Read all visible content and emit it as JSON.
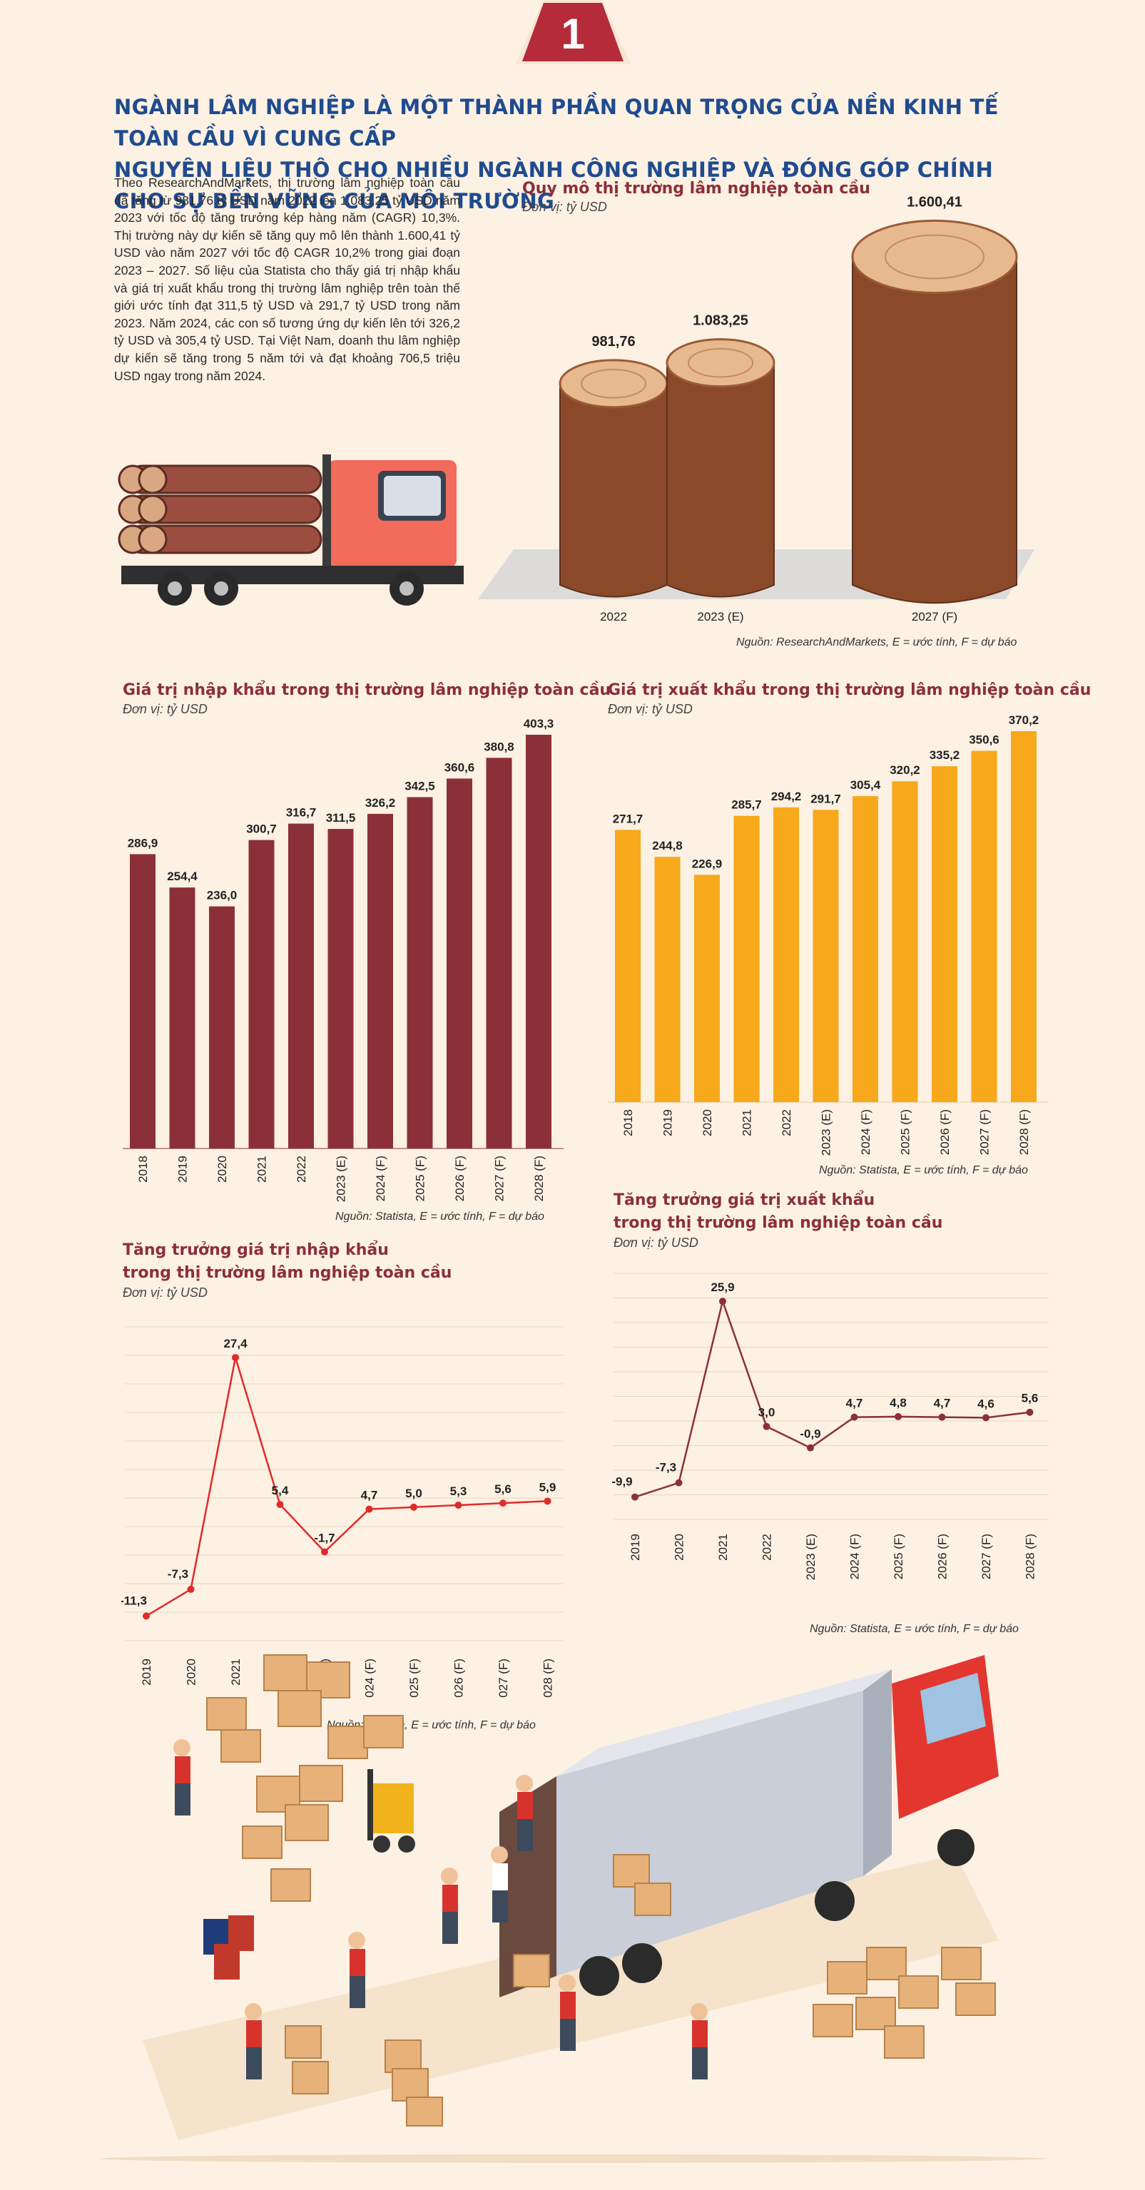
{
  "badge": {
    "number": "1"
  },
  "headline": {
    "line1": "NGÀNH LÂM NGHIỆP LÀ MỘT THÀNH PHẦN QUAN TRỌNG CỦA NỀN KINH TẾ TOÀN CẦU VÌ CUNG CẤP",
    "line2": "NGUYÊN LIỆU THÔ CHO NHIỀU NGÀNH CÔNG NGHIỆP VÀ ĐÓNG GÓP CHÍNH CHO SỰ BỀN VỮNG CỦA MÔI TRƯỜNG"
  },
  "intro": {
    "text": "Theo ResearchAndMarkets, thị trường lâm nghiệp toàn cầu đã tăng từ 981,76 tỷ USD năm 2022 lên 1.083,25 tỷ USD năm 2023 với tốc độ tăng trưởng kép hàng năm (CAGR) 10,3%. Thị trường này dự kiến sẽ tăng quy mô lên thành 1.600,41 tỷ USD vào năm 2027 với tốc độ CAGR 10,2% trong giai đoạn 2023 – 2027. Số liệu của Statista cho thấy giá trị nhập khẩu và giá trị xuất khẩu trong thị trường lâm nghiệp trên toàn thế giới ước tính đạt 311,5 tỷ USD và 291,7 tỷ USD trong năm 2023. Năm 2024, các con số tương ứng dự kiến lên tới 326,2 tỷ USD và 305,4 tỷ USD. Tại Việt Nam, doanh thu lâm nghiệp dự kiến sẽ tăng trong 5 năm tới và đạt khoảng 706,5 triệu USD ngay trong năm 2024."
  },
  "colors": {
    "maroon": "#8b3039",
    "orange": "#f7a81b",
    "red_line": "#e02b2b",
    "dark_line": "#8b3039",
    "headline_blue": "#1f4b8f",
    "wood": "#8a4a2a"
  },
  "charts": {
    "market": {
      "title": "Quy mô thị trường lâm nghiệp toàn cầu",
      "unit": "Đơn vị: tỷ USD",
      "source": "Nguồn: ResearchAndMarkets, E = ước tính, F = dự báo"
    },
    "imports": {
      "title": "Giá trị nhập khẩu trong thị trường lâm nghiệp toàn cầu",
      "unit": "Đơn vị: tỷ USD",
      "source": "Nguồn: Statista, E = ước tính, F = dự báo"
    },
    "exports": {
      "title": "Giá trị xuất khẩu trong thị trường lâm nghiệp toàn cầu",
      "unit": "Đơn vị: tỷ USD",
      "source": "Nguồn: Statista, E = ước tính, F = dự báo"
    },
    "import_growth": {
      "title_line1": "Tăng trưởng giá trị nhập khẩu",
      "title_line2": "trong thị trường lâm nghiệp toàn cầu",
      "unit": "Đơn vị: tỷ USD",
      "source": "Nguồn: Statista, E = ước tính, F = dự báo"
    },
    "export_growth": {
      "title_line1": "Tăng trưởng giá trị xuất khẩu",
      "title_line2": "trong thị trường lâm nghiệp toàn cầu",
      "unit": "Đơn vị: tỷ USD",
      "source": "Nguồn: Statista, E = ước tính, F = dự báo"
    }
  },
  "chart_data": [
    {
      "id": "market",
      "type": "bar",
      "title": "Quy mô thị trường lâm nghiệp toàn cầu",
      "categories": [
        "2022",
        "2023 (E)",
        "2027 (F)"
      ],
      "values": [
        981.76,
        1083.25,
        1600.41
      ],
      "value_labels": [
        "981,76",
        "1.083,25",
        "1.600,41"
      ]
    },
    {
      "id": "imports",
      "type": "bar",
      "title": "Giá trị nhập khẩu trong thị trường lâm nghiệp toàn cầu",
      "categories": [
        "2018",
        "2019",
        "2020",
        "2021",
        "2022",
        "2023 (E)",
        "2024 (F)",
        "2025 (F)",
        "2026 (F)",
        "2027 (F)",
        "2028 (F)"
      ],
      "values": [
        286.9,
        254.4,
        236.0,
        300.7,
        316.7,
        311.5,
        326.2,
        342.5,
        360.6,
        380.8,
        403.3
      ],
      "value_labels": [
        "286,9",
        "254,4",
        "236,0",
        "300,7",
        "316,7",
        "311,5",
        "326,2",
        "342,5",
        "360,6",
        "380,8",
        "403,3"
      ],
      "ylim": [
        0,
        403.3
      ]
    },
    {
      "id": "exports",
      "type": "bar",
      "title": "Giá trị xuất khẩu trong thị trường lâm nghiệp toàn cầu",
      "categories": [
        "2018",
        "2019",
        "2020",
        "2021",
        "2022",
        "2023 (E)",
        "2024 (F)",
        "2025 (F)",
        "2026 (F)",
        "2027 (F)",
        "2028 (F)"
      ],
      "values": [
        271.7,
        244.8,
        226.9,
        285.7,
        294.2,
        291.7,
        305.4,
        320.2,
        335.2,
        350.6,
        370.2
      ],
      "value_labels": [
        "271,7",
        "244,8",
        "226,9",
        "285,7",
        "294,2",
        "291,7",
        "305,4",
        "320,2",
        "335,2",
        "350,6",
        "370,2"
      ],
      "ylim": [
        0,
        370.2
      ]
    },
    {
      "id": "import_growth",
      "type": "line",
      "title": "Tăng trưởng giá trị nhập khẩu trong thị trường lâm nghiệp toàn cầu",
      "categories": [
        "2019",
        "2020",
        "2021",
        "2022",
        "2023 (E)",
        "2024 (F)",
        "2025 (F)",
        "2026 (F)",
        "2027 (F)",
        "2028 (F)"
      ],
      "values": [
        -11.3,
        -7.3,
        27.4,
        5.4,
        -1.7,
        4.7,
        5.0,
        5.3,
        5.6,
        5.9
      ],
      "value_labels": [
        "-11,3",
        "-7,3",
        "27,4",
        "5,4",
        "-1,7",
        "4,7",
        "5,0",
        "5,3",
        "5,6",
        "5,9"
      ],
      "grid": true
    },
    {
      "id": "export_growth",
      "type": "line",
      "title": "Tăng trưởng giá trị xuất khẩu trong thị trường lâm nghiệp toàn cầu",
      "categories": [
        "2019",
        "2020",
        "2021",
        "2022",
        "2023 (E)",
        "2024 (F)",
        "2025 (F)",
        "2026 (F)",
        "2027 (F)",
        "2028 (F)"
      ],
      "values": [
        -9.9,
        -7.3,
        25.9,
        3.0,
        -0.9,
        4.7,
        4.8,
        4.7,
        4.6,
        5.6
      ],
      "value_labels": [
        "-9,9",
        "-7,3",
        "25,9",
        "3,0",
        "-0,9",
        "4,7",
        "4,8",
        "4,7",
        "4,6",
        "5,6"
      ],
      "grid": true
    }
  ]
}
